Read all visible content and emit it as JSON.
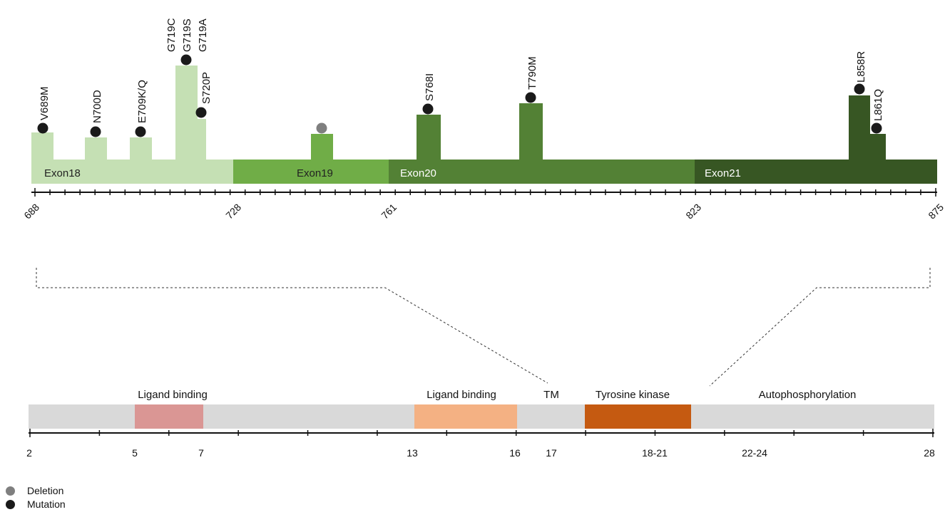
{
  "exon_track": {
    "exons": [
      {
        "label": "Exon18",
        "start": 688,
        "end": 728,
        "color": "#c5e0b4",
        "text_color": "#222222"
      },
      {
        "label": "Exon19",
        "start": 728,
        "end": 761,
        "color": "#70ad47",
        "text_color": "#222222"
      },
      {
        "label": "Exon20",
        "start": 761,
        "end": 823,
        "color": "#538135",
        "text_color": "#ffffff"
      },
      {
        "label": "Exon21",
        "start": 823,
        "end": 875,
        "color": "#375623",
        "text_color": "#ffffff"
      }
    ],
    "axis_labels": [
      "688",
      "728",
      "761",
      "823",
      "875"
    ],
    "mutations": [
      {
        "label": "V689M",
        "type": "mutation"
      },
      {
        "label": "N700D",
        "type": "mutation"
      },
      {
        "label": "E709K/Q",
        "type": "mutation"
      },
      {
        "label": "G719C",
        "type": "mutation"
      },
      {
        "label": "G719S",
        "type": "mutation"
      },
      {
        "label": "G719A",
        "type": "mutation"
      },
      {
        "label": "S720P",
        "type": "mutation"
      },
      {
        "label": "",
        "type": "deletion"
      },
      {
        "label": "S768I",
        "type": "mutation"
      },
      {
        "label": "T790M",
        "type": "mutation"
      },
      {
        "label": "L858R",
        "type": "mutation"
      },
      {
        "label": "L861Q",
        "type": "mutation"
      }
    ]
  },
  "domain_track": {
    "domains": [
      {
        "label": "Ligand binding",
        "color": "#da9694"
      },
      {
        "label": "Ligand binding",
        "color": "#f4b183"
      },
      {
        "label": "TM",
        "color": ""
      },
      {
        "label": "Tyrosine kinase",
        "color": "#c55a11"
      },
      {
        "label": "Autophosphorylation",
        "color": ""
      }
    ],
    "axis_labels": [
      "2",
      "5",
      "7",
      "13",
      "16",
      "17",
      "18-21",
      "22-24",
      "28"
    ],
    "base_color": "#d9d9d9"
  },
  "legend": {
    "deletion": {
      "label": "Deletion",
      "color": "#7f7f7f"
    },
    "mutation": {
      "label": "Mutation",
      "color": "#1a1a1a"
    }
  }
}
